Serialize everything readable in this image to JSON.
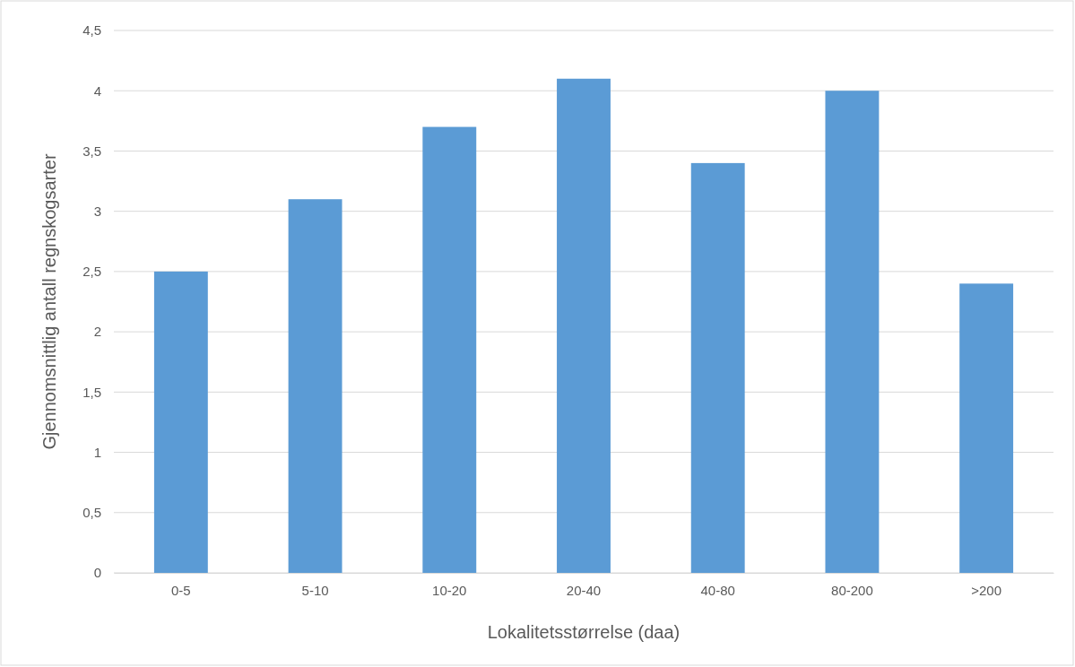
{
  "chart_data": {
    "type": "bar",
    "xlabel": "Lokalitetsstørrelse (daa)",
    "ylabel": "Gjennomsnittlig antall regnskogsarter",
    "categories": [
      "0-5",
      "5-10",
      "10-20",
      "20-40",
      "40-80",
      "80-200",
      ">200"
    ],
    "values": [
      2.5,
      3.1,
      3.7,
      4.1,
      3.4,
      4.0,
      2.4
    ],
    "color": "#5b9bd5",
    "ylim": [
      0,
      4.5
    ],
    "yticks": [
      0,
      {
        "value": 0.5,
        "label": "0,5"
      },
      1,
      {
        "value": 1.5,
        "label": "1,5"
      },
      2,
      {
        "value": 2.5,
        "label": "2,5"
      },
      3,
      {
        "value": 3.5,
        "label": "3,5"
      },
      4,
      {
        "value": 4.5,
        "label": "4,5"
      }
    ],
    "grid": "y"
  }
}
